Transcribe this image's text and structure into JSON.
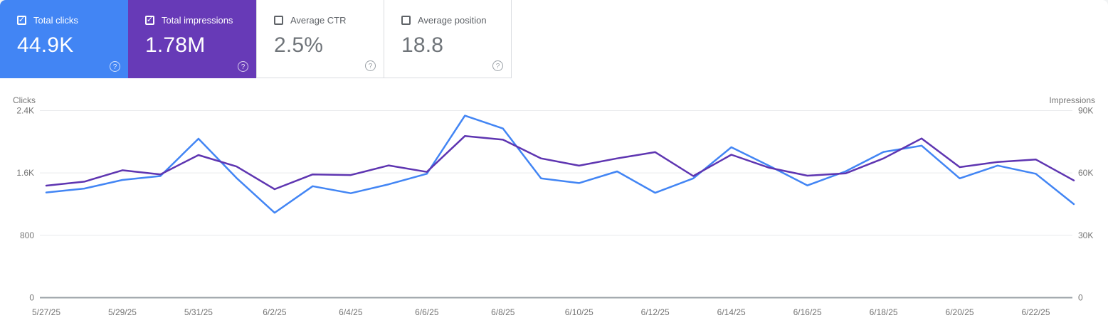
{
  "cards": [
    {
      "label": "Total clicks",
      "value": "44.9K",
      "checked": true,
      "color": "#4285f4"
    },
    {
      "label": "Total impressions",
      "value": "1.78M",
      "checked": true,
      "color": "#673ab7"
    },
    {
      "label": "Average CTR",
      "value": "2.5%",
      "checked": false,
      "color": null
    },
    {
      "label": "Average position",
      "value": "18.8",
      "checked": false,
      "color": null
    }
  ],
  "chart_data": {
    "type": "line",
    "x": [
      "5/27/25",
      "5/28/25",
      "5/29/25",
      "5/30/25",
      "5/31/25",
      "6/1/25",
      "6/2/25",
      "6/3/25",
      "6/4/25",
      "6/5/25",
      "6/6/25",
      "6/7/25",
      "6/8/25",
      "6/9/25",
      "6/10/25",
      "6/11/25",
      "6/12/25",
      "6/13/25",
      "6/14/25",
      "6/15/25",
      "6/16/25",
      "6/17/25",
      "6/18/25",
      "6/19/25",
      "6/20/25",
      "6/21/25",
      "6/22/25",
      "6/23/25"
    ],
    "x_tick_labels": [
      "5/27/25",
      "5/29/25",
      "5/31/25",
      "6/2/25",
      "6/4/25",
      "6/6/25",
      "6/8/25",
      "6/10/25",
      "6/12/25",
      "6/14/25",
      "6/16/25",
      "6/18/25",
      "6/20/25",
      "6/22/25"
    ],
    "series": [
      {
        "name": "Clicks",
        "axis": "left",
        "color": "#4285f4",
        "values": [
          1350,
          1400,
          1510,
          1560,
          2040,
          1535,
          1090,
          1430,
          1340,
          1455,
          1590,
          2335,
          2170,
          1530,
          1470,
          1620,
          1345,
          1530,
          1930,
          1690,
          1440,
          1620,
          1870,
          1950,
          1530,
          1695,
          1590,
          1200
        ]
      },
      {
        "name": "Impressions",
        "axis": "right",
        "color": "#5e35b1",
        "values": [
          53900,
          55800,
          61300,
          59300,
          68600,
          63100,
          52200,
          59300,
          59000,
          63600,
          60500,
          77800,
          76000,
          67000,
          63500,
          67000,
          70000,
          58500,
          68800,
          62500,
          58700,
          59800,
          67000,
          76600,
          62800,
          65300,
          66500,
          56400
        ]
      }
    ],
    "left_axis": {
      "title": "Clicks",
      "range": [
        0,
        2400
      ],
      "ticks": [
        "2.4K",
        "1.6K",
        "800",
        "0"
      ]
    },
    "right_axis": {
      "title": "Impressions",
      "range": [
        0,
        90000
      ],
      "ticks": [
        "90K",
        "60K",
        "30K",
        "0"
      ]
    },
    "grid": true,
    "legend_position": "none",
    "colors": {
      "grid": "#e9eaec",
      "baseline": "#9aa0a6",
      "tick_text": "#757575"
    }
  }
}
